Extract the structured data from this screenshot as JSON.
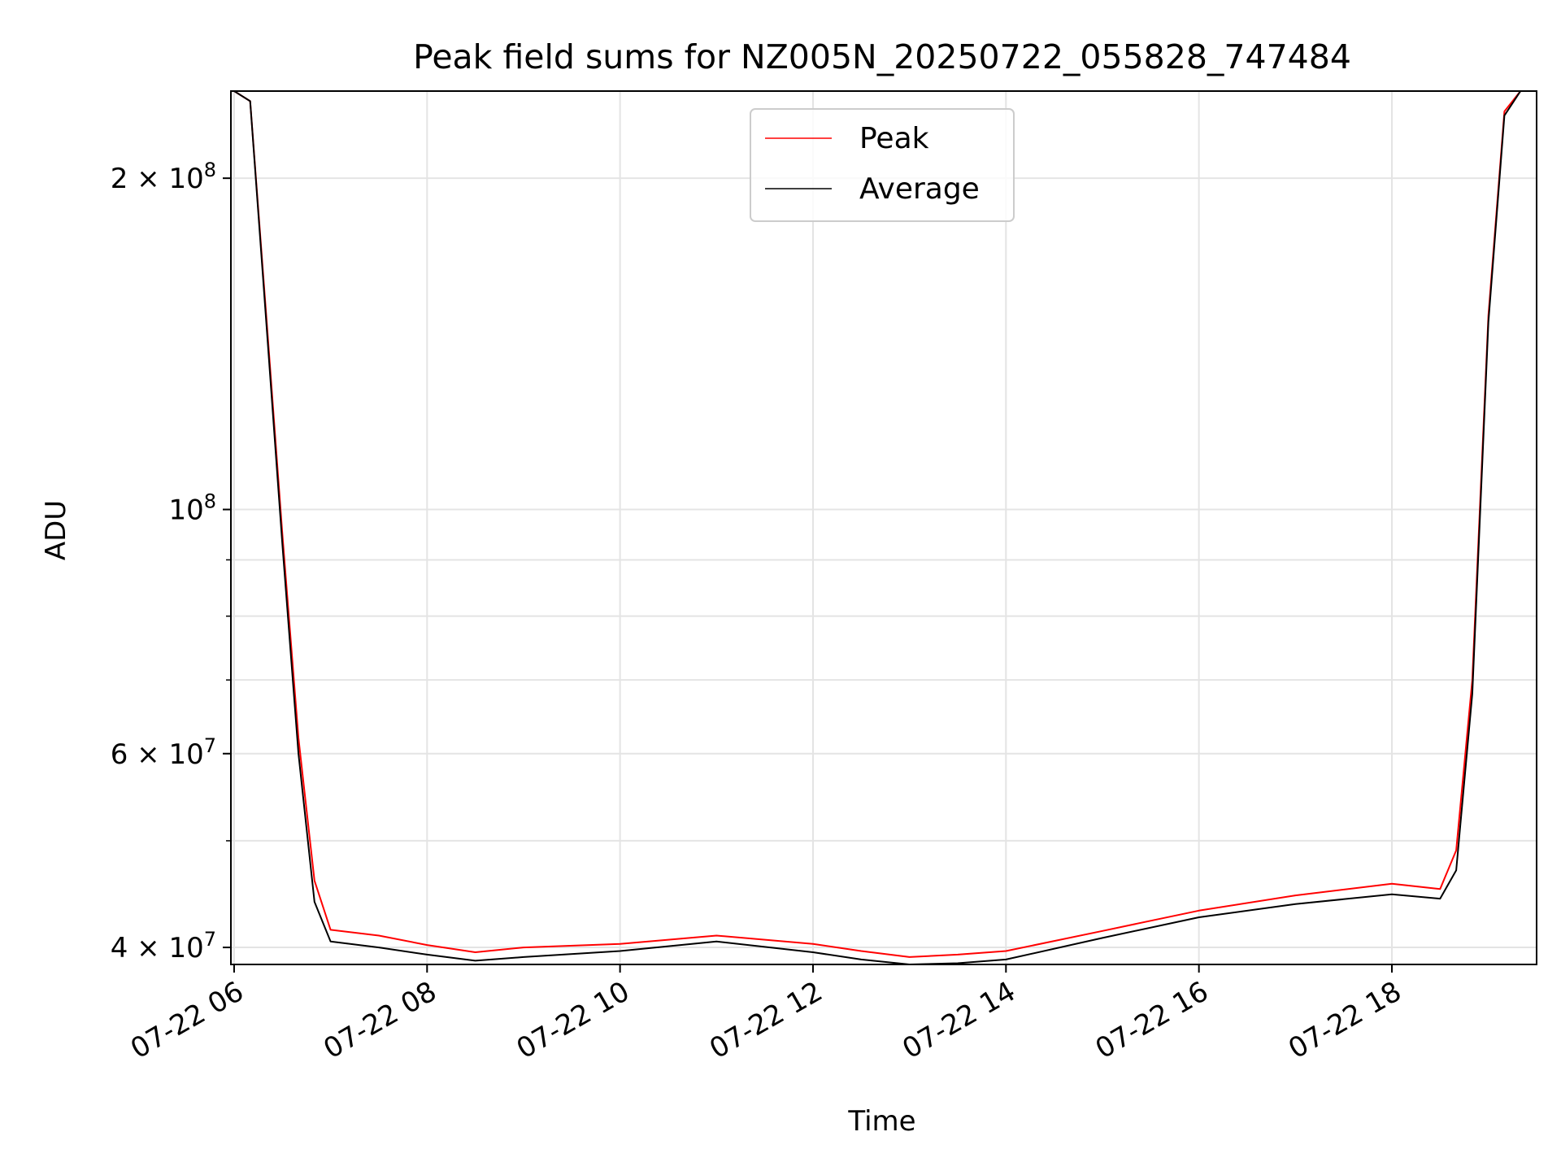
{
  "chart_data": {
    "type": "line",
    "title": "Peak field sums for NZ005N_20250722_055828_747484",
    "xlabel": "Time",
    "ylabel": "ADU",
    "xscale": "time",
    "yscale": "log",
    "xlim": [
      "2025-07-22 05:58",
      "2025-07-22 19:30"
    ],
    "ylim": [
      38600000,
      240000000
    ],
    "grid": true,
    "legend": {
      "position": "upper center"
    },
    "x_ticks": [
      "07-22 06",
      "07-22 08",
      "07-22 10",
      "07-22 12",
      "07-22 14",
      "07-22 16",
      "07-22 18"
    ],
    "x_tick_values": [
      "2025-07-22 06:00",
      "2025-07-22 08:00",
      "2025-07-22 10:00",
      "2025-07-22 12:00",
      "2025-07-22 14:00",
      "2025-07-22 16:00",
      "2025-07-22 18:00"
    ],
    "y_ticks": [
      {
        "value": 200000000,
        "base": "2 × 10",
        "exp": "8"
      },
      {
        "value": 100000000,
        "base": "10",
        "exp": "8"
      },
      {
        "value": 60000000,
        "base": "6 × 10",
        "exp": "7"
      },
      {
        "value": 40000000,
        "base": "4 × 10",
        "exp": "7"
      }
    ],
    "y_minor_ticks": [
      50000000,
      70000000,
      80000000,
      90000000
    ],
    "x": [
      "2025-07-22 06:00",
      "2025-07-22 06:10",
      "2025-07-22 06:20",
      "2025-07-22 06:30",
      "2025-07-22 06:40",
      "2025-07-22 06:50",
      "2025-07-22 07:00",
      "2025-07-22 07:30",
      "2025-07-22 08:00",
      "2025-07-22 08:30",
      "2025-07-22 09:00",
      "2025-07-22 10:00",
      "2025-07-22 11:00",
      "2025-07-22 12:00",
      "2025-07-22 12:30",
      "2025-07-22 13:00",
      "2025-07-22 13:30",
      "2025-07-22 14:00",
      "2025-07-22 15:00",
      "2025-07-22 16:00",
      "2025-07-22 17:00",
      "2025-07-22 18:00",
      "2025-07-22 18:30",
      "2025-07-22 18:40",
      "2025-07-22 18:50",
      "2025-07-22 19:00",
      "2025-07-22 19:10",
      "2025-07-22 19:20",
      "2025-07-22 19:30"
    ],
    "series": [
      {
        "name": "Peak",
        "color": "#ff0000",
        "values": [
          240000000,
          235000000,
          150000000,
          95000000,
          62000000,
          46000000,
          41500000,
          41000000,
          40200000,
          39600000,
          40000000,
          40300000,
          41000000,
          40300000,
          39700000,
          39200000,
          39400000,
          39700000,
          41400000,
          43200000,
          44600000,
          45700000,
          45200000,
          49000000,
          70000000,
          150000000,
          230000000,
          240000000,
          240000000
        ]
      },
      {
        "name": "Average",
        "color": "#000000",
        "values": [
          240000000,
          235000000,
          148000000,
          93000000,
          60000000,
          44000000,
          40500000,
          40000000,
          39400000,
          38900000,
          39200000,
          39700000,
          40500000,
          39600000,
          39000000,
          38600000,
          38700000,
          39000000,
          40800000,
          42600000,
          43800000,
          44700000,
          44300000,
          47000000,
          68000000,
          148000000,
          228000000,
          240000000,
          240000000
        ]
      }
    ]
  }
}
